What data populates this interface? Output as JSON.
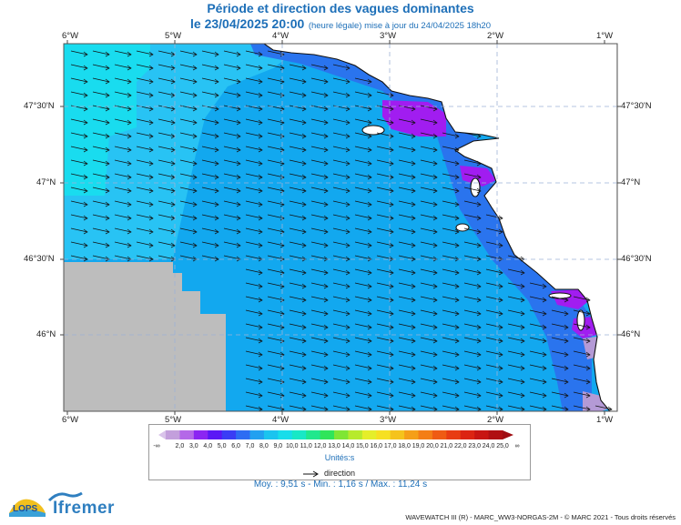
{
  "header": {
    "title": "Période et direction des vagues dominantes",
    "date_main": "le 23/04/2025 20:00",
    "date_note": "(heure légale) mise à jour du 24/04/2025 18h20"
  },
  "map": {
    "lon_ticks": [
      "6°W",
      "5°W",
      "4°W",
      "3°W",
      "2°W",
      "1°W"
    ],
    "lat_ticks": [
      "47°30'N",
      "47°N",
      "46°30'N",
      "46°N"
    ],
    "colors": {
      "cyan": "#19dcef",
      "light_blue": "#28c3f4",
      "medium_blue": "#12a8ef",
      "blue": "#2a74ee",
      "violet": "#a11df0",
      "lilac": "#b49ad6",
      "land": "#ffffff",
      "nodata": "#bdbdbd",
      "arrow": "#111111"
    }
  },
  "legend": {
    "low_end": "-∞",
    "high_end": "∞",
    "labels": [
      "2,0",
      "3,0",
      "4,0",
      "5,0",
      "6,0",
      "7,0",
      "8,0",
      "9,0",
      "10,0",
      "11,0",
      "12,0",
      "13,0",
      "14,0",
      "15,0",
      "16,0",
      "17,0",
      "18,0",
      "19,0",
      "20,0",
      "21,0",
      "22,0",
      "23,0",
      "24,0",
      "25,0"
    ],
    "colors": [
      "#c39fdc",
      "#b469e8",
      "#8b25f2",
      "#5a17f5",
      "#3a3df5",
      "#2e6cf3",
      "#22a0f0",
      "#1bc4ef",
      "#17ddea",
      "#18e8c6",
      "#20e88d",
      "#2fe55a",
      "#7fe634",
      "#b7ea2c",
      "#e5ee2a",
      "#f6e022",
      "#f5c31c",
      "#f59f18",
      "#f47e16",
      "#ef5b14",
      "#e83c13",
      "#dc2412",
      "#c81512",
      "#b00f12"
    ],
    "units": "Unités:s",
    "direction_label": "direction"
  },
  "stats": "Moy. : 9,51 s   -   Min. : 1,16 s / Max. : 11,24 s",
  "footer": "WAVEWATCH III (R) - MARC_WW3-NORGAS-2M - © MARC 2021 - Tous droits réservés",
  "logos": {
    "lops": "LOPS",
    "ifremer": "Ifremer"
  }
}
